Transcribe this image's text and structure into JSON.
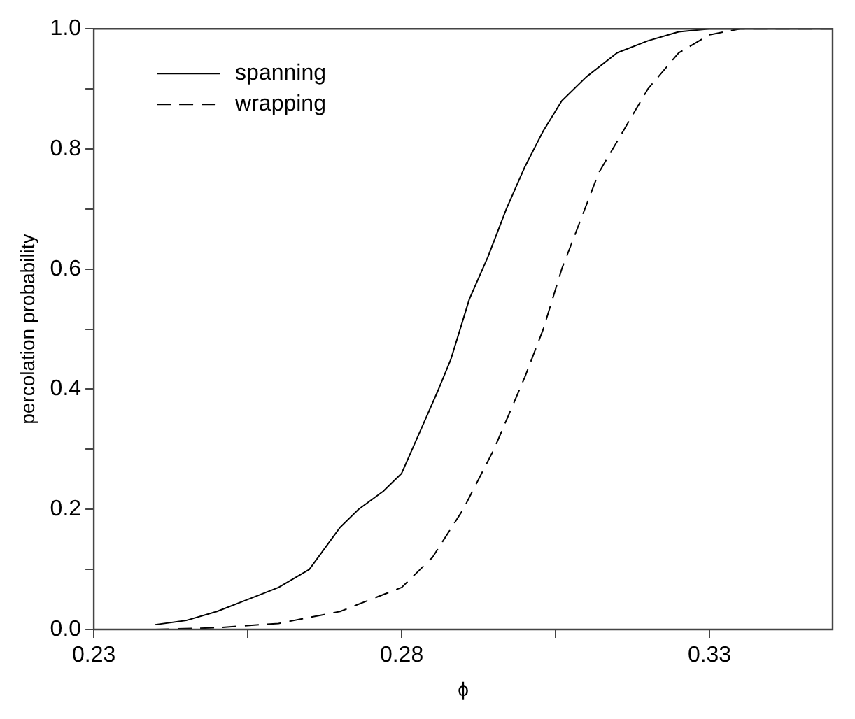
{
  "chart_data": {
    "type": "line",
    "xlabel": "ϕ",
    "ylabel": "percolation probability",
    "xlim": [
      0.23,
      0.35
    ],
    "ylim": [
      0,
      1
    ],
    "xticks": [
      0.23,
      {
        "value": 0.255,
        "label": null
      },
      0.28,
      {
        "value": 0.305,
        "label": null
      },
      0.33
    ],
    "yticks": [
      {
        "value": 0,
        "label": "0.0"
      },
      {
        "value": 0.1,
        "label": null
      },
      {
        "value": 0.2,
        "label": "0.2"
      },
      {
        "value": 0.3,
        "label": null
      },
      {
        "value": 0.4,
        "label": "0.4"
      },
      {
        "value": 0.5,
        "label": null
      },
      {
        "value": 0.6,
        "label": "0.6"
      },
      {
        "value": 0.7,
        "label": null
      },
      {
        "value": 0.8,
        "label": "0.8"
      },
      {
        "value": 0.9,
        "label": null
      },
      {
        "value": 1,
        "label": "1.0"
      }
    ],
    "grid": false,
    "legend": "top left",
    "marker": "none",
    "series": [
      {
        "name": "spanning",
        "color": "#000000",
        "line_style": "solid",
        "x": [
          0.24,
          0.245,
          0.25,
          0.255,
          0.26,
          0.265,
          0.27,
          0.273,
          0.277,
          0.28,
          0.283,
          0.286,
          0.288,
          0.291,
          0.294,
          0.297,
          0.3,
          0.303,
          0.306,
          0.31,
          0.315,
          0.32,
          0.325,
          0.33,
          0.35
        ],
        "values": [
          0.008,
          0.015,
          0.03,
          0.05,
          0.07,
          0.1,
          0.17,
          0.2,
          0.23,
          0.26,
          0.33,
          0.4,
          0.45,
          0.55,
          0.62,
          0.7,
          0.77,
          0.83,
          0.88,
          0.92,
          0.96,
          0.98,
          0.995,
          1,
          1
        ]
      },
      {
        "name": "wrapping",
        "color": "#000000",
        "line_style": "dashed",
        "x": [
          0.24,
          0.25,
          0.26,
          0.265,
          0.27,
          0.275,
          0.28,
          0.285,
          0.29,
          0.295,
          0.3,
          0.303,
          0.306,
          0.309,
          0.312,
          0.316,
          0.32,
          0.325,
          0.33,
          0.335,
          0.35
        ],
        "values": [
          0,
          0.003,
          0.01,
          0.02,
          0.03,
          0.05,
          0.07,
          0.12,
          0.2,
          0.3,
          0.42,
          0.5,
          0.6,
          0.68,
          0.76,
          0.83,
          0.9,
          0.96,
          0.99,
          1,
          1
        ]
      }
    ]
  }
}
